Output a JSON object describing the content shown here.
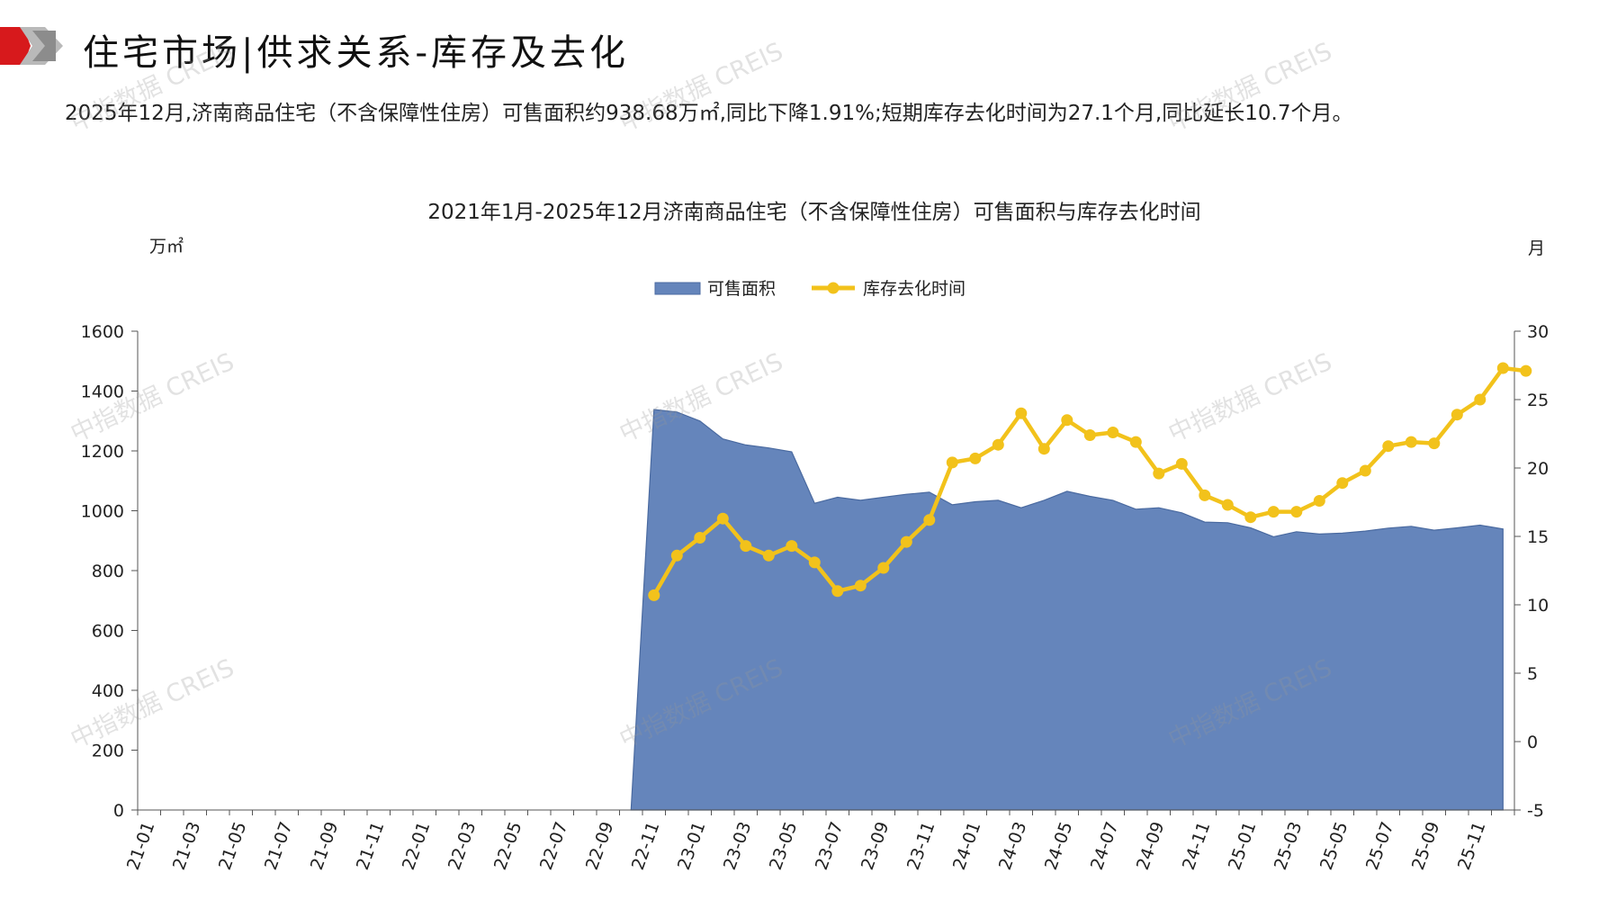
{
  "header": {
    "title": "住宅市场|供求关系-库存及去化"
  },
  "summary": "2025年12月,济南商品住宅（不含保障性住房）可售面积约938.68万㎡,同比下降1.91%;短期库存去化时间为27.1个月,同比延长10.7个月。",
  "watermark": "中指数据 CREIS",
  "colors": {
    "area": "#6585bb",
    "area_stroke": "#4a6aa0",
    "line": "#f2c21b",
    "accent_red": "#d7191c"
  },
  "chart_data": {
    "type": "area",
    "title": "2021年1月-2025年12月济南商品住宅（不含保障性住房）可售面积与库存去化时间",
    "ylabel_left": "万㎡",
    "ylabel_right": "月",
    "ylim_left": [
      0,
      1600
    ],
    "ylim_right": [
      -5,
      30
    ],
    "yticks_left": [
      0,
      200,
      400,
      600,
      800,
      1000,
      1200,
      1400,
      1600
    ],
    "yticks_right": [
      -5,
      0,
      5,
      10,
      15,
      20,
      25,
      30
    ],
    "xtick_labels": [
      "21-01",
      "21-03",
      "21-05",
      "21-07",
      "21-09",
      "21-11",
      "22-01",
      "22-03",
      "22-05",
      "22-07",
      "22-09",
      "22-11",
      "23-01",
      "23-03",
      "23-05",
      "23-07",
      "23-09",
      "23-11",
      "24-01",
      "24-03",
      "24-05",
      "24-07",
      "24-09",
      "24-11",
      "25-01",
      "25-03",
      "25-05",
      "25-07",
      "25-09",
      "25-11"
    ],
    "legend_position": "top-center",
    "series": [
      {
        "name": "可售面积",
        "type": "area",
        "start_index": 21,
        "values": [
          0,
          1338,
          1330,
          1300,
          1240,
          1220,
          1210,
          1197,
          1025,
          1045,
          1035,
          1045,
          1055,
          1062,
          1020,
          1030,
          1035,
          1010,
          1035,
          1065,
          1048,
          1035,
          1005,
          1010,
          993,
          962,
          960,
          943,
          913,
          930,
          922,
          925,
          932,
          942,
          948,
          935,
          943,
          952,
          939
        ]
      },
      {
        "name": "库存去化时间",
        "type": "line",
        "start_index": 22,
        "values": [
          10.7,
          13.6,
          14.9,
          16.3,
          14.3,
          13.6,
          14.3,
          13.1,
          11.0,
          11.4,
          12.7,
          14.6,
          16.2,
          20.4,
          20.7,
          21.7,
          24.0,
          21.4,
          23.5,
          22.4,
          22.6,
          21.9,
          19.6,
          20.3,
          18.0,
          17.3,
          16.4,
          16.8,
          16.8,
          17.6,
          18.9,
          19.8,
          21.6,
          21.9,
          21.8,
          23.9,
          25.0,
          27.3,
          27.1
        ]
      }
    ]
  }
}
